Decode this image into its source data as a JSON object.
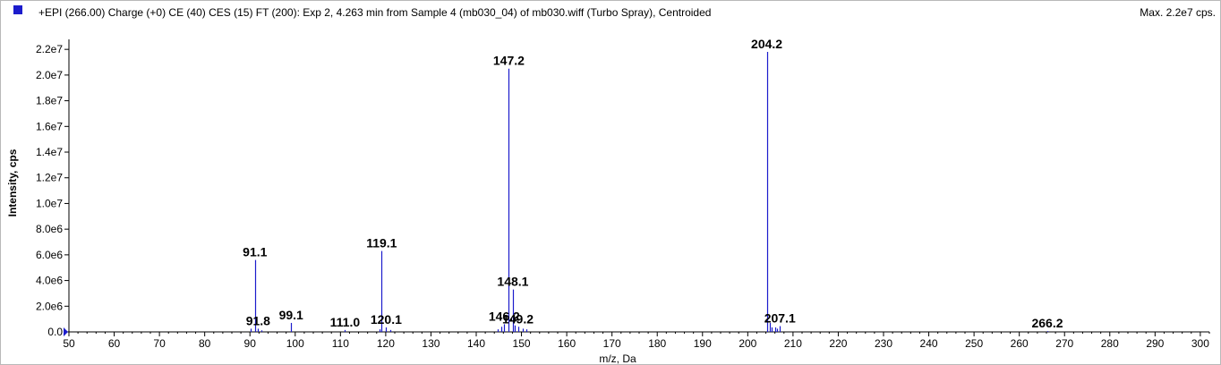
{
  "header": {
    "title": "+EPI (266.00) Charge (+0) CE (40) CES (15) FT (200): Exp 2, 4.263 min from Sample 4 (mb030_04) of mb030.wiff (Turbo Spray), Centroided",
    "max_label": "Max. 2.2e7 cps."
  },
  "colors": {
    "series": "#1c1ccc",
    "axis": "#000000",
    "swatch": "#1c1ccc"
  },
  "chart_data": {
    "type": "bar",
    "title": "+EPI (266.00) Charge (+0) CE (40) CES (15) FT (200): Exp 2, 4.263 min from Sample 4 (mb030_04) of mb030.wiff (Turbo Spray), Centroided",
    "xlabel": "m/z, Da",
    "ylabel": "Intensity, cps",
    "xlim": [
      50,
      302
    ],
    "ylim": [
      0,
      22500000
    ],
    "xticks": [
      50,
      60,
      70,
      80,
      90,
      100,
      110,
      120,
      130,
      140,
      150,
      160,
      170,
      180,
      190,
      200,
      210,
      220,
      230,
      240,
      250,
      260,
      270,
      280,
      290,
      300
    ],
    "yticks": [
      {
        "value": 0,
        "label": "0.0"
      },
      {
        "value": 2000000,
        "label": "2.0e6"
      },
      {
        "value": 4000000,
        "label": "4.0e6"
      },
      {
        "value": 6000000,
        "label": "6.0e6"
      },
      {
        "value": 8000000,
        "label": "8.0e6"
      },
      {
        "value": 10000000,
        "label": "1.0e7"
      },
      {
        "value": 12000000,
        "label": "1.2e7"
      },
      {
        "value": 14000000,
        "label": "1.4e7"
      },
      {
        "value": 16000000,
        "label": "1.6e7"
      },
      {
        "value": 18000000,
        "label": "1.8e7"
      },
      {
        "value": 20000000,
        "label": "2.0e7"
      },
      {
        "value": 22000000,
        "label": "2.2e7"
      }
    ],
    "peaks": [
      {
        "mz": 90.2,
        "intensity": 250000
      },
      {
        "mz": 91.1,
        "intensity": 5600000
      },
      {
        "mz": 91.8,
        "intensity": 250000
      },
      {
        "mz": 92.6,
        "intensity": 120000
      },
      {
        "mz": 99.1,
        "intensity": 700000
      },
      {
        "mz": 111.0,
        "intensity": 150000
      },
      {
        "mz": 118.6,
        "intensity": 200000
      },
      {
        "mz": 119.1,
        "intensity": 6300000
      },
      {
        "mz": 120.1,
        "intensity": 350000
      },
      {
        "mz": 121.0,
        "intensity": 150000
      },
      {
        "mz": 144.8,
        "intensity": 200000
      },
      {
        "mz": 145.6,
        "intensity": 400000
      },
      {
        "mz": 146.2,
        "intensity": 600000
      },
      {
        "mz": 147.2,
        "intensity": 20500000
      },
      {
        "mz": 148.1,
        "intensity": 3300000
      },
      {
        "mz": 148.6,
        "intensity": 500000
      },
      {
        "mz": 149.2,
        "intensity": 400000
      },
      {
        "mz": 150.2,
        "intensity": 250000
      },
      {
        "mz": 151.1,
        "intensity": 200000
      },
      {
        "mz": 204.2,
        "intensity": 21800000
      },
      {
        "mz": 204.8,
        "intensity": 700000
      },
      {
        "mz": 205.3,
        "intensity": 350000
      },
      {
        "mz": 206.0,
        "intensity": 350000
      },
      {
        "mz": 206.5,
        "intensity": 250000
      },
      {
        "mz": 207.1,
        "intensity": 450000
      },
      {
        "mz": 266.2,
        "intensity": 60000
      }
    ],
    "annotations": [
      {
        "text": "91.1",
        "mz": 91.1,
        "intensity": 5600000
      },
      {
        "text": "91.8",
        "mz": 91.8,
        "intensity": 250000
      },
      {
        "text": "99.1",
        "mz": 99.1,
        "intensity": 700000
      },
      {
        "text": "111.0",
        "mz": 111.0,
        "intensity": 150000
      },
      {
        "text": "119.1",
        "mz": 119.1,
        "intensity": 6300000
      },
      {
        "text": "120.1",
        "mz": 120.1,
        "intensity": 350000
      },
      {
        "text": "146.2",
        "mz": 146.2,
        "intensity": 600000
      },
      {
        "text": "147.2",
        "mz": 147.2,
        "intensity": 20500000
      },
      {
        "text": "148.1",
        "mz": 148.1,
        "intensity": 3300000
      },
      {
        "text": "149.2",
        "mz": 149.2,
        "intensity": 400000
      },
      {
        "text": "204.2",
        "mz": 204.2,
        "intensity": 21800000
      },
      {
        "text": "207.1",
        "mz": 207.1,
        "intensity": 450000
      },
      {
        "text": "266.2",
        "mz": 266.2,
        "intensity": 60000
      }
    ],
    "grid": false,
    "legend": "top-left"
  }
}
